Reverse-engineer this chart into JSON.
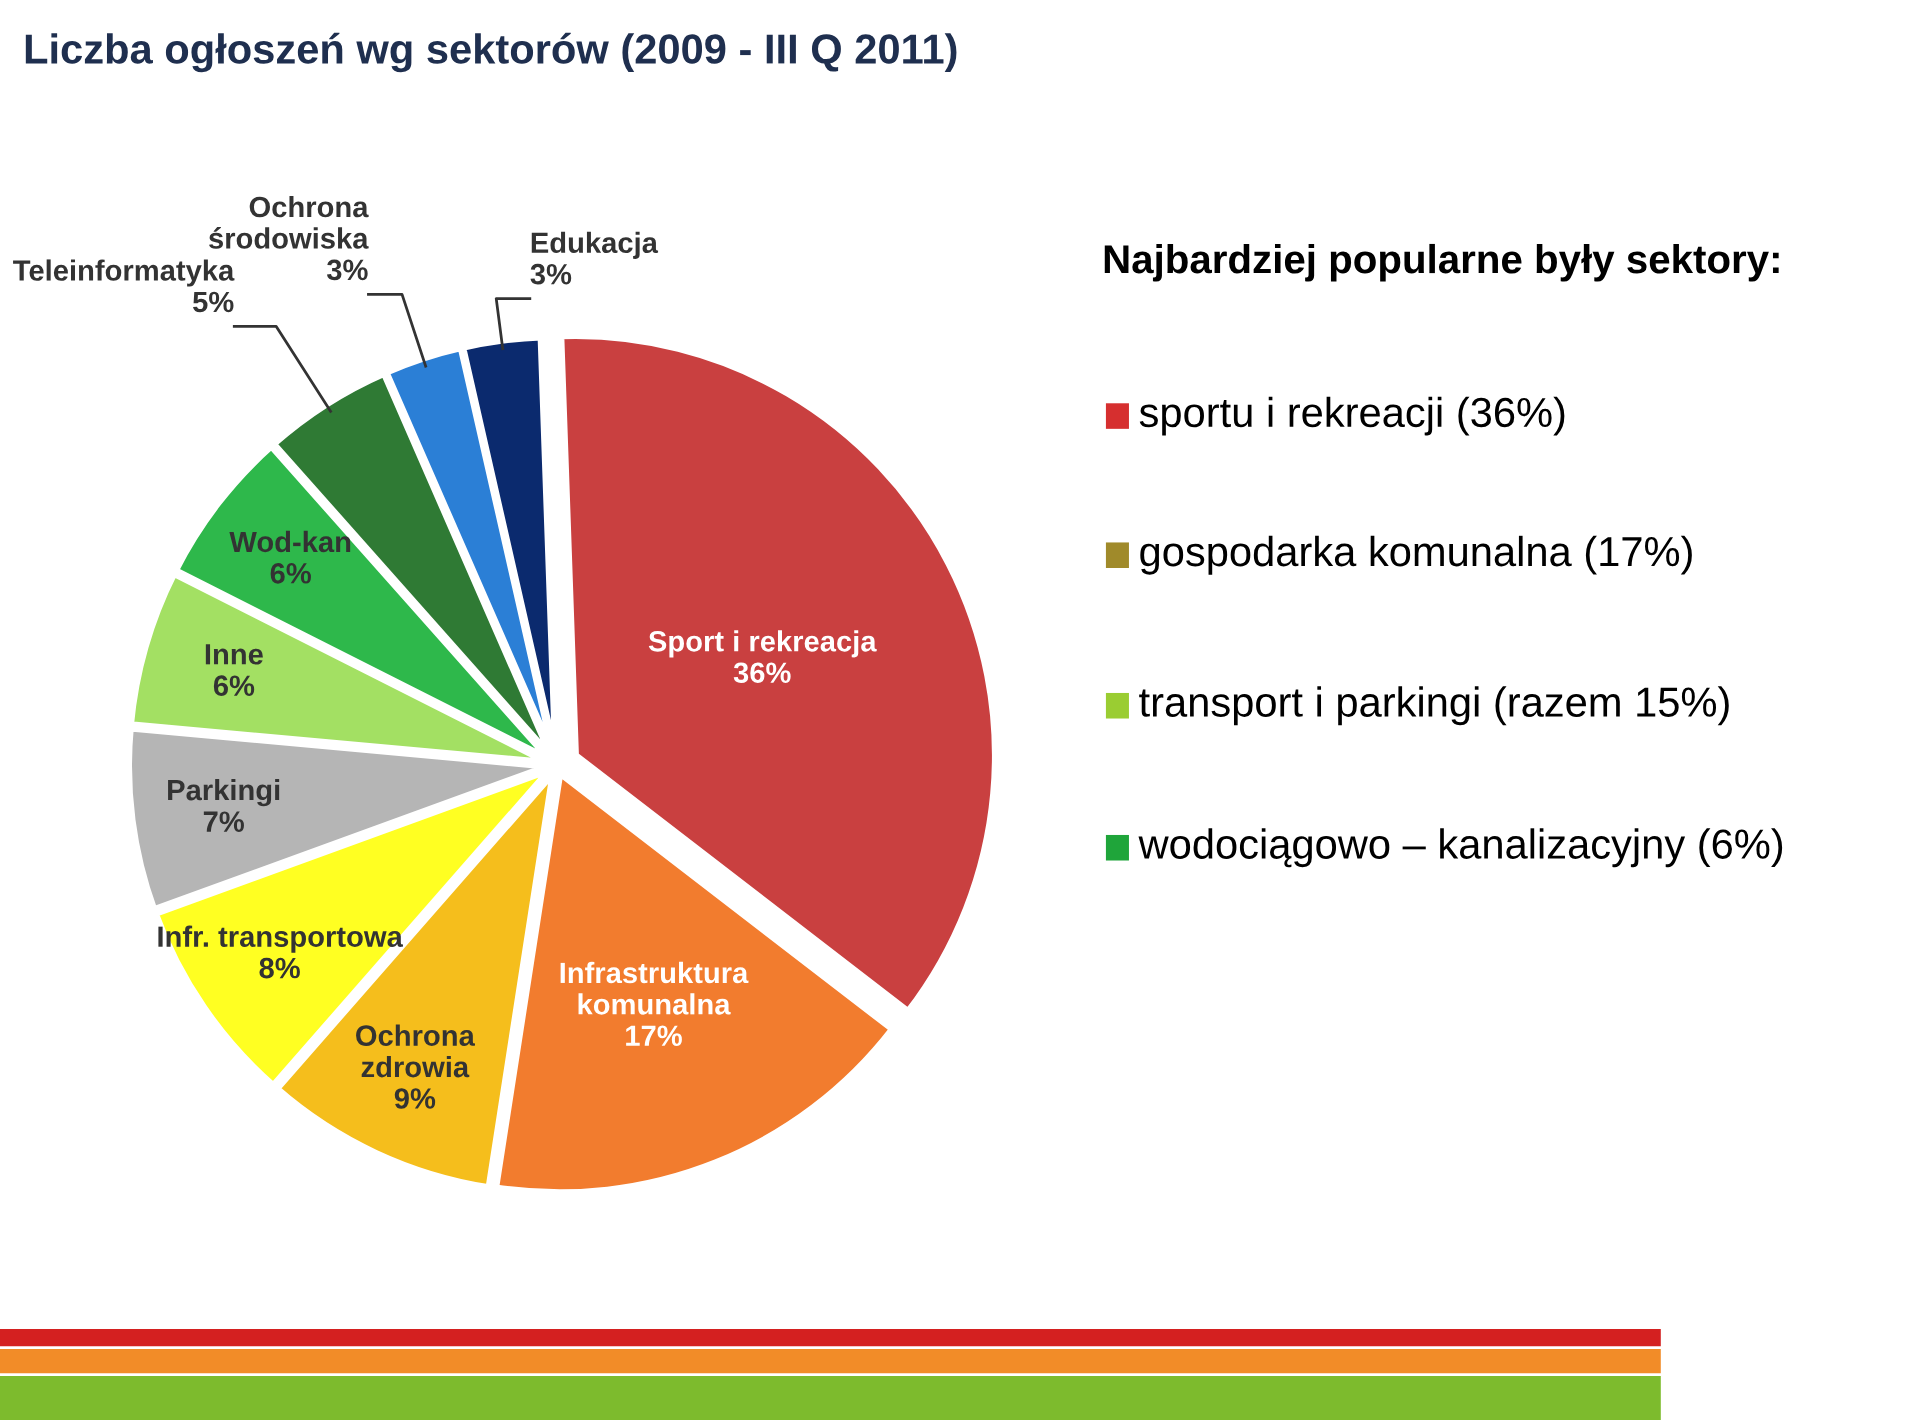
{
  "chart_data": {
    "type": "pie",
    "title": "Liczba ogłoszeń wg sektorów (2009 - III Q 2011)",
    "categories": [
      "Sport i rekreacja",
      "Infrastruktura\nkomunalna",
      "Ochrona\nzdrowia",
      "Infr. transportowa",
      "Parkingi",
      "Inne",
      "Wod-kan",
      "Teleinformatyka",
      "Ochrona\nśrodowiska",
      "Edukacja"
    ],
    "values": [
      36,
      17,
      9,
      8,
      7,
      6,
      6,
      5,
      3,
      3
    ],
    "value_labels": [
      "36%",
      "17%",
      "9%",
      "8%",
      "7%",
      "6%",
      "6%",
      "5%",
      "3%",
      "3%"
    ],
    "colors": [
      "#c94040",
      "#f27c2e",
      "#f5be1c",
      "#ffff22",
      "#b5b5b5",
      "#a3e063",
      "#2eb84b",
      "#2f7a34",
      "#2b7fd6",
      "#0b2a6e"
    ],
    "annotations": [
      "Najbardziej popularne były sektory:",
      "sportu i rekreacji (36%)",
      "gospodarka komunalna (17%)",
      "transport i parkingi (razem 15%)",
      "wodociągowo – kanalizacyjny (6%)"
    ]
  }
}
